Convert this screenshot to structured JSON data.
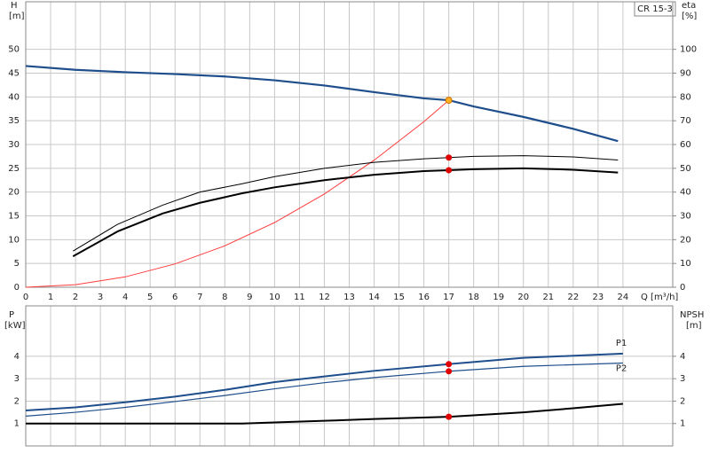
{
  "chart_data": [
    {
      "type": "line",
      "box_label": "CR 15-3",
      "y_label": "H",
      "y_unit": "[m]",
      "y2_label": "eta",
      "y2_unit": "[%]",
      "x_label": "Q [m³/h]",
      "xlim": [
        0,
        26
      ],
      "xticks": [
        0,
        1,
        2,
        3,
        4,
        5,
        6,
        7,
        8,
        9,
        10,
        11,
        12,
        13,
        14,
        15,
        16,
        17,
        18,
        19,
        20,
        21,
        22,
        23,
        24
      ],
      "ylim": [
        0,
        60
      ],
      "yticks": [
        0,
        5,
        10,
        15,
        20,
        25,
        30,
        35,
        40,
        45,
        50
      ],
      "y2lim": [
        0,
        120
      ],
      "y2ticks": [
        0,
        10,
        20,
        30,
        40,
        50,
        60,
        70,
        80,
        90,
        100
      ],
      "grid": true,
      "series": [
        {
          "color": "#ff3b3b",
          "width": 1,
          "x": [
            0,
            2,
            4,
            6,
            8,
            10,
            12,
            14,
            16,
            17
          ],
          "values": [
            0,
            0.54,
            2.18,
            4.9,
            8.7,
            13.6,
            19.6,
            26.7,
            34.8,
            39.3
          ]
        },
        {
          "color": "#1f4e8c",
          "width": 2.2,
          "x": [
            0,
            2,
            4,
            6,
            8,
            10,
            12,
            14,
            16,
            17,
            18,
            20,
            22,
            23.8
          ],
          "values": [
            46.5,
            45.7,
            45.2,
            44.8,
            44.3,
            43.5,
            42.4,
            41.0,
            39.7,
            39.3,
            38.0,
            35.8,
            33.3,
            30.7
          ]
        },
        {
          "color": "#000000",
          "width": 1,
          "axis": "y2",
          "x": [
            1.9,
            3.7,
            5.5,
            7,
            8.7,
            10,
            12,
            14,
            16,
            17,
            18,
            20,
            22,
            23.8
          ],
          "values": [
            15.2,
            26.5,
            34.5,
            40,
            43.5,
            46.5,
            50,
            52.5,
            54,
            54.5,
            55,
            55.3,
            54.8,
            53.5
          ]
        },
        {
          "color": "#000000",
          "width": 2,
          "axis": "y2",
          "x": [
            1.9,
            3.7,
            5.5,
            7,
            8.7,
            10,
            12,
            14,
            16,
            17,
            18,
            20,
            22,
            23.8
          ],
          "values": [
            13,
            23.5,
            31,
            35.5,
            39.5,
            42,
            45,
            47.3,
            48.8,
            49.2,
            49.6,
            50,
            49.4,
            48.2
          ]
        },
        {
          "mode": "markers",
          "color": "#e10000",
          "axis": "y2",
          "x": [
            17,
            17
          ],
          "values": [
            54.5,
            49.2
          ]
        },
        {
          "mode": "markers",
          "color": "#ffb020",
          "x": [
            17
          ],
          "values": [
            39.3
          ]
        }
      ]
    },
    {
      "type": "line",
      "y_label": "P",
      "y_unit": "[kW]",
      "y2_label": "NPSH",
      "y2_unit": "[m]",
      "xlim": [
        0,
        26
      ],
      "ylim": [
        0,
        6.25
      ],
      "yticks": [
        1,
        2,
        3,
        4
      ],
      "y2lim": [
        0,
        6.25
      ],
      "y2ticks": [
        1,
        2,
        3,
        4
      ],
      "grid": true,
      "series": [
        {
          "name": "P1",
          "color": "#1f4e8c",
          "width": 2,
          "x": [
            0,
            2,
            4,
            6,
            8,
            10,
            12,
            14,
            17,
            20,
            24
          ],
          "values": [
            1.58,
            1.72,
            1.95,
            2.2,
            2.5,
            2.85,
            3.1,
            3.35,
            3.65,
            3.93,
            4.12
          ]
        },
        {
          "name": "P2",
          "color": "#1f4e8c",
          "width": 1.2,
          "x": [
            0,
            2,
            4,
            6,
            8,
            10,
            12,
            14,
            17,
            20,
            24
          ],
          "values": [
            1.33,
            1.5,
            1.72,
            1.98,
            2.25,
            2.55,
            2.82,
            3.05,
            3.33,
            3.55,
            3.7
          ]
        },
        {
          "color": "#000000",
          "width": 2,
          "axis": "y2",
          "x": [
            0,
            8.7,
            10,
            12,
            14,
            17,
            20,
            22,
            24
          ],
          "values": [
            1.0,
            1.0,
            1.05,
            1.12,
            1.2,
            1.3,
            1.5,
            1.68,
            1.88
          ]
        },
        {
          "mode": "markers",
          "color": "#e10000",
          "x": [
            17,
            17
          ],
          "values": [
            3.65,
            3.33
          ]
        },
        {
          "mode": "markers",
          "color": "#e10000",
          "axis": "y2",
          "x": [
            17
          ],
          "values": [
            1.3
          ]
        }
      ]
    }
  ]
}
